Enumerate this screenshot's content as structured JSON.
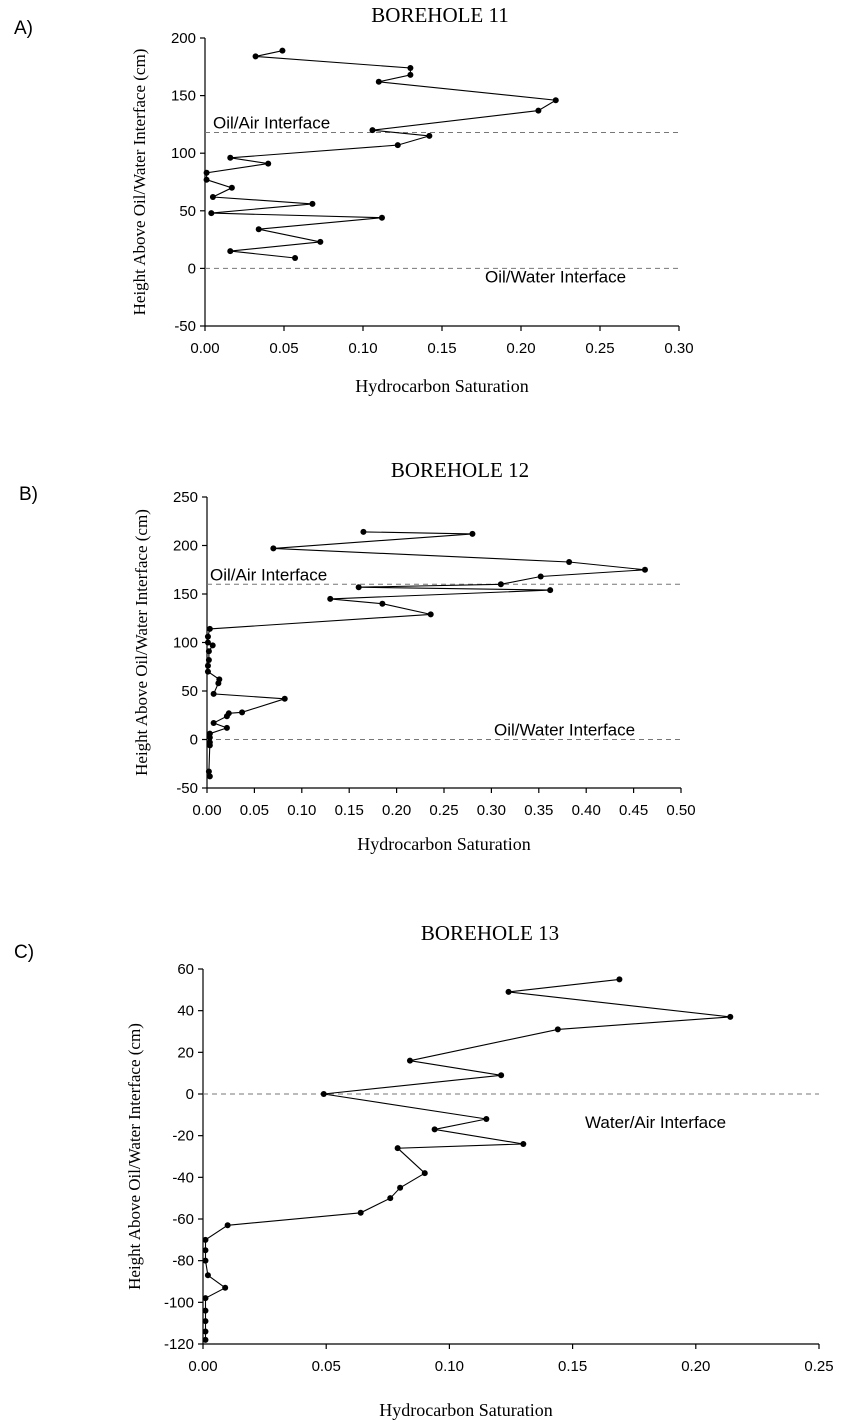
{
  "chart_data": [
    {
      "panel_label": "A)",
      "type": "line",
      "title": "BOREHOLE 11",
      "xlabel": "Hydrocarbon Saturation",
      "ylabel": "Height Above Oil/Water Interface (cm)",
      "xlim": [
        0,
        0.3
      ],
      "ylim": [
        -50,
        200
      ],
      "x_ticks": [
        "0.00",
        "0.05",
        "0.10",
        "0.15",
        "0.20",
        "0.25",
        "0.30"
      ],
      "y_ticks": [
        "200",
        "150",
        "100",
        "50",
        "0",
        "-50"
      ],
      "grid": false,
      "reference_lines": [
        {
          "y": 118,
          "label": "Oil/Air Interface"
        },
        {
          "y": 0,
          "label": "Oil/Water Interface"
        }
      ],
      "series": [
        {
          "points": [
            [
              0.049,
              189
            ],
            [
              0.032,
              184
            ],
            [
              0.13,
              174
            ],
            [
              0.13,
              168
            ],
            [
              0.11,
              162
            ],
            [
              0.222,
              146
            ],
            [
              0.211,
              137
            ],
            [
              0.106,
              120
            ],
            [
              0.142,
              115
            ],
            [
              0.122,
              107
            ],
            [
              0.016,
              96
            ],
            [
              0.04,
              91
            ],
            [
              0.001,
              83
            ],
            [
              0.001,
              77
            ],
            [
              0.017,
              70
            ],
            [
              0.005,
              62
            ],
            [
              0.068,
              56
            ],
            [
              0.004,
              48
            ],
            [
              0.112,
              44
            ],
            [
              0.034,
              34
            ],
            [
              0.073,
              23
            ],
            [
              0.016,
              15
            ],
            [
              0.057,
              9
            ]
          ]
        }
      ]
    },
    {
      "panel_label": "B)",
      "type": "line",
      "title": "BOREHOLE 12",
      "xlabel": "Hydrocarbon Saturation",
      "ylabel": "Height Above Oil/Water Interface (cm)",
      "xlim": [
        0,
        0.5
      ],
      "ylim": [
        -50,
        250
      ],
      "x_ticks": [
        "0.00",
        "0.05",
        "0.10",
        "0.15",
        "0.20",
        "0.25",
        "0.30",
        "0.35",
        "0.40",
        "0.45",
        "0.50"
      ],
      "y_ticks": [
        "250",
        "200",
        "150",
        "100",
        "50",
        "0",
        "-50"
      ],
      "grid": false,
      "reference_lines": [
        {
          "y": 160,
          "label": "Oil/Air Interface"
        },
        {
          "y": 0,
          "label": "Oil/Water Interface"
        }
      ],
      "series": [
        {
          "points": [
            [
              0.165,
              214
            ],
            [
              0.28,
              212
            ],
            [
              0.07,
              197
            ],
            [
              0.382,
              183
            ],
            [
              0.462,
              175
            ],
            [
              0.352,
              168
            ],
            [
              0.31,
              160
            ],
            [
              0.16,
              157
            ],
            [
              0.362,
              154
            ],
            [
              0.13,
              145
            ],
            [
              0.185,
              140
            ],
            [
              0.236,
              129
            ],
            [
              0.003,
              114
            ],
            [
              0.001,
              106
            ],
            [
              0.001,
              100
            ],
            [
              0.006,
              97
            ],
            [
              0.002,
              91
            ],
            [
              0.002,
              82
            ],
            [
              0.001,
              76
            ],
            [
              0.001,
              70
            ],
            [
              0.013,
              62
            ],
            [
              0.012,
              58
            ],
            [
              0.007,
              47
            ],
            [
              0.082,
              42
            ],
            [
              0.037,
              28
            ],
            [
              0.023,
              27
            ],
            [
              0.021,
              24
            ],
            [
              0.007,
              17
            ],
            [
              0.021,
              12
            ],
            [
              0.003,
              6
            ],
            [
              0.003,
              2
            ],
            [
              0.003,
              -3
            ],
            [
              0.003,
              -6
            ],
            [
              0.002,
              -33
            ],
            [
              0.003,
              -38
            ]
          ]
        }
      ]
    },
    {
      "panel_label": "C)",
      "type": "line",
      "title": "BOREHOLE 13",
      "xlabel": "Hydrocarbon Saturation",
      "ylabel": "Height Above Oil/Water Interface (cm)",
      "xlim": [
        0,
        0.25
      ],
      "ylim": [
        -120,
        60
      ],
      "x_ticks": [
        "0.00",
        "0.05",
        "0.10",
        "0.15",
        "0.20",
        "0.25"
      ],
      "y_ticks": [
        "60",
        "40",
        "20",
        "0",
        "-20",
        "-40",
        "-60",
        "-80",
        "-100",
        "-120"
      ],
      "grid": false,
      "reference_lines": [
        {
          "y": 0,
          "label": "Water/Air Interface"
        }
      ],
      "series": [
        {
          "points": [
            [
              0.169,
              55
            ],
            [
              0.124,
              49
            ],
            [
              0.214,
              37
            ],
            [
              0.144,
              31
            ],
            [
              0.084,
              16
            ],
            [
              0.121,
              9
            ],
            [
              0.049,
              0
            ],
            [
              0.115,
              -12
            ],
            [
              0.094,
              -17
            ],
            [
              0.13,
              -24
            ],
            [
              0.079,
              -26
            ],
            [
              0.09,
              -38
            ],
            [
              0.08,
              -45
            ],
            [
              0.076,
              -50
            ],
            [
              0.064,
              -57
            ],
            [
              0.01,
              -63
            ],
            [
              0.001,
              -70
            ],
            [
              0.001,
              -75
            ],
            [
              0.001,
              -80
            ],
            [
              0.002,
              -87
            ],
            [
              0.009,
              -93
            ],
            [
              0.001,
              -98
            ],
            [
              0.001,
              -104
            ],
            [
              0.001,
              -109
            ],
            [
              0.001,
              -114
            ],
            [
              0.001,
              -118
            ]
          ]
        }
      ]
    }
  ]
}
